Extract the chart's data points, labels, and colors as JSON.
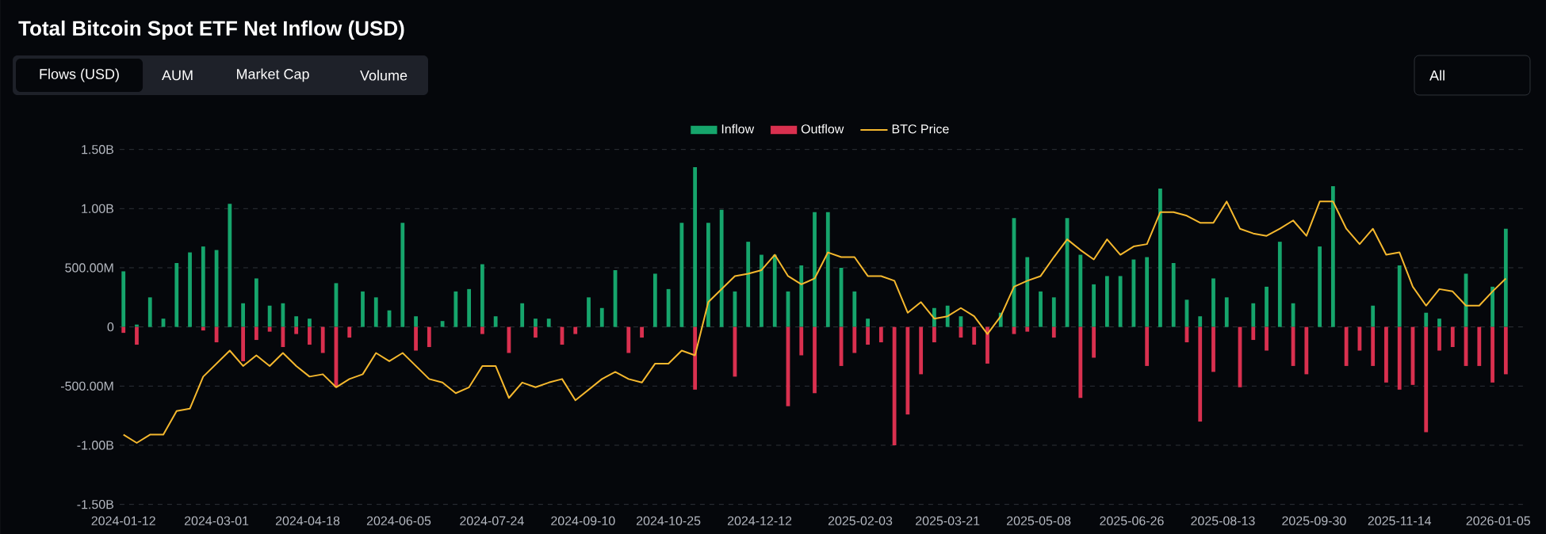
{
  "chart_data": {
    "type": "bar",
    "title": "Total Bitcoin Spot ETF Net Inflow (USD)",
    "annotations": [
      "Flows (USD)",
      "AUM",
      "Market Cap",
      "Volume",
      "All"
    ],
    "x": [
      "2024-01-12",
      "2024-01-19",
      "2024-01-26",
      "2024-02-02",
      "2024-02-09",
      "2024-02-16",
      "2024-02-23",
      "2024-03-01",
      "2024-03-08",
      "2024-03-15",
      "2024-03-22",
      "2024-03-29",
      "2024-04-05",
      "2024-04-12",
      "2024-04-19",
      "2024-04-26",
      "2024-05-03",
      "2024-05-10",
      "2024-05-17",
      "2024-05-24",
      "2024-05-31",
      "2024-06-07",
      "2024-06-14",
      "2024-06-21",
      "2024-06-28",
      "2024-07-05",
      "2024-07-12",
      "2024-07-19",
      "2024-07-26",
      "2024-08-02",
      "2024-08-09",
      "2024-08-16",
      "2024-08-23",
      "2024-08-30",
      "2024-09-06",
      "2024-09-13",
      "2024-09-20",
      "2024-09-27",
      "2024-10-04",
      "2024-10-11",
      "2024-10-18",
      "2024-10-25",
      "2024-11-01",
      "2024-11-08",
      "2024-11-15",
      "2024-11-22",
      "2024-11-29",
      "2024-12-06",
      "2024-12-13",
      "2024-12-20",
      "2024-12-27",
      "2025-01-03",
      "2025-01-10",
      "2025-01-17",
      "2025-01-24",
      "2025-01-31",
      "2025-02-07",
      "2025-02-14",
      "2025-02-21",
      "2025-02-28",
      "2025-03-07",
      "2025-03-14",
      "2025-03-21",
      "2025-03-28",
      "2025-04-04",
      "2025-04-11",
      "2025-04-18",
      "2025-04-25",
      "2025-05-02",
      "2025-05-09",
      "2025-05-16",
      "2025-05-23",
      "2025-05-30",
      "2025-06-06",
      "2025-06-13",
      "2025-06-20",
      "2025-06-27",
      "2025-07-04",
      "2025-07-11",
      "2025-07-18",
      "2025-07-25",
      "2025-08-01",
      "2025-08-08",
      "2025-08-15",
      "2025-08-22",
      "2025-08-29",
      "2025-09-05",
      "2025-09-12",
      "2025-09-19",
      "2025-09-26",
      "2025-10-03",
      "2025-10-10",
      "2025-10-17",
      "2025-10-24",
      "2025-10-31",
      "2025-11-07",
      "2025-11-14",
      "2025-11-21",
      "2025-11-28",
      "2025-12-05",
      "2025-12-12",
      "2025-12-19",
      "2025-12-26",
      "2026-01-02",
      "2026-01-09"
    ],
    "series": [
      {
        "name": "Inflow",
        "color": "#16a56c",
        "values": [
          470000000.0,
          20000000.0,
          250000000.0,
          70000000.0,
          540000000.0,
          630000000.0,
          680000000.0,
          650000000.0,
          1040000000.0,
          200000000.0,
          410000000.0,
          180000000.0,
          200000000.0,
          90000000.0,
          70000000.0,
          null,
          370000000.0,
          null,
          300000000.0,
          250000000.0,
          140000000.0,
          880000000.0,
          90000000.0,
          null,
          50000000.0,
          300000000.0,
          320000000.0,
          530000000.0,
          90000000.0,
          null,
          200000000.0,
          70000000.0,
          70000000.0,
          null,
          null,
          250000000.0,
          160000000.0,
          480000000.0,
          null,
          null,
          450000000.0,
          320000000.0,
          880000000.0,
          1350000000.0,
          880000000.0,
          990000000.0,
          300000000.0,
          720000000.0,
          610000000.0,
          610000000.0,
          300000000.0,
          520000000.0,
          970000000.0,
          970000000.0,
          500000000.0,
          300000000.0,
          70000000.0,
          null,
          null,
          null,
          null,
          160000000.0,
          180000000.0,
          90000000.0,
          null,
          null,
          120000000.0,
          920000000.0,
          590000000.0,
          300000000.0,
          250000000.0,
          920000000.0,
          610000000.0,
          360000000.0,
          430000000.0,
          430000000.0,
          570000000.0,
          590000000.0,
          1170000000.0,
          540000000.0,
          230000000.0,
          90000000.0,
          410000000.0,
          250000000.0,
          null,
          200000000.0,
          340000000.0,
          720000000.0,
          200000000.0,
          null,
          680000000.0,
          1190000000.0,
          null,
          null,
          180000000.0,
          null,
          520000000.0,
          null,
          120000000.0,
          70000000.0,
          null,
          450000000.0,
          null,
          340000000.0,
          830000000.0
        ]
      },
      {
        "name": "Outflow",
        "color": "#d9304f",
        "values": [
          -50000000.0,
          -150000000.0,
          null,
          null,
          null,
          null,
          -30000000.0,
          -130000000.0,
          null,
          -290000000.0,
          -110000000.0,
          -40000000.0,
          -170000000.0,
          -60000000.0,
          -150000000.0,
          -220000000.0,
          -510000000.0,
          -90000000.0,
          null,
          null,
          null,
          null,
          -200000000.0,
          -170000000.0,
          null,
          null,
          null,
          -60000000.0,
          null,
          -220000000.0,
          null,
          -90000000.0,
          null,
          -150000000.0,
          -60000000.0,
          null,
          null,
          null,
          -220000000.0,
          -90000000.0,
          null,
          null,
          null,
          -530000000.0,
          null,
          null,
          -420000000.0,
          null,
          null,
          null,
          -670000000.0,
          -240000000.0,
          -560000000.0,
          null,
          -330000000.0,
          -220000000.0,
          -150000000.0,
          -130000000.0,
          -1000000000.0,
          -740000000.0,
          -400000000.0,
          -130000000.0,
          null,
          -90000000.0,
          -150000000.0,
          -310000000.0,
          null,
          -60000000.0,
          -40000000.0,
          null,
          -90000000.0,
          null,
          -600000000.0,
          -260000000.0,
          null,
          null,
          null,
          -330000000.0,
          null,
          null,
          -130000000.0,
          -800000000.0,
          -380000000.0,
          null,
          -510000000.0,
          -110000000.0,
          -200000000.0,
          null,
          -330000000.0,
          -400000000.0,
          null,
          null,
          -330000000.0,
          -200000000.0,
          -330000000.0,
          -470000000.0,
          -530000000.0,
          -490000000.0,
          -890000000.0,
          -200000000.0,
          -170000000.0,
          -330000000.0,
          -330000000.0,
          -470000000.0,
          -400000000.0
        ]
      },
      {
        "name": "BTC Price",
        "type": "line",
        "color": "#f5b82e",
        "values": [
          -910000000.0,
          -980000000.0,
          -910000000.0,
          -910000000.0,
          -710000000.0,
          -690000000.0,
          -420000000.0,
          -310000000.0,
          -200000000.0,
          -330000000.0,
          -240000000.0,
          -330000000.0,
          -220000000.0,
          -330000000.0,
          -420000000.0,
          -400000000.0,
          -510000000.0,
          -440000000.0,
          -400000000.0,
          -220000000.0,
          -290000000.0,
          -220000000.0,
          -330000000.0,
          -440000000.0,
          -470000000.0,
          -560000000.0,
          -510000000.0,
          -330000000.0,
          -330000000.0,
          -600000000.0,
          -470000000.0,
          -510000000.0,
          -470000000.0,
          -440000000.0,
          -620000000.0,
          -530000000.0,
          -440000000.0,
          -380000000.0,
          -440000000.0,
          -470000000.0,
          -310000000.0,
          -310000000.0,
          -200000000.0,
          -240000000.0,
          210000000.0,
          320000000.0,
          430000000.0,
          450000000.0,
          480000000.0,
          610000000.0,
          430000000.0,
          360000000.0,
          410000000.0,
          630000000.0,
          590000000.0,
          590000000.0,
          430000000.0,
          430000000.0,
          390000000.0,
          120000000.0,
          210000000.0,
          70000000.0,
          90000000.0,
          160000000.0,
          90000000.0,
          -60000000.0,
          90000000.0,
          340000000.0,
          390000000.0,
          430000000.0,
          590000000.0,
          740000000.0,
          650000000.0,
          570000000.0,
          740000000.0,
          610000000.0,
          680000000.0,
          700000000.0,
          970000000.0,
          970000000.0,
          940000000.0,
          880000000.0,
          880000000.0,
          1060000000.0,
          830000000.0,
          790000000.0,
          770000000.0,
          830000000.0,
          900000000.0,
          770000000.0,
          1060000000.0,
          1060000000.0,
          830000000.0,
          700000000.0,
          830000000.0,
          610000000.0,
          630000000.0,
          340000000.0,
          180000000.0,
          320000000.0,
          300000000.0,
          180000000.0,
          180000000.0,
          300000000.0,
          410000000.0
        ]
      }
    ],
    "xlim": [
      "2024-01-10",
      "2026-01-18"
    ],
    "xticks": [
      "2024-01-12",
      "2024-03-01",
      "2024-04-18",
      "2024-06-05",
      "2024-07-24",
      "2024-09-10",
      "2024-10-25",
      "2024-12-12",
      "2025-02-03",
      "2025-03-21",
      "2025-05-08",
      "2025-06-26",
      "2025-08-13",
      "2025-09-30",
      "2025-11-14",
      "2026-01-05"
    ],
    "ylim": [
      -1500000000.0,
      1500000000.0
    ],
    "yticks": [
      {
        "value": -1500000000.0,
        "label": "-1.50B"
      },
      {
        "value": -1000000000.0,
        "label": "-1.00B"
      },
      {
        "value": -500000000.0,
        "label": "-500.00M"
      },
      0,
      {
        "value": 500000000.0,
        "label": "500.00M"
      },
      {
        "value": 1000000000.0,
        "label": "1.00B"
      },
      {
        "value": 1500000000.0,
        "label": "1.50B"
      }
    ],
    "grid": "y",
    "legend": "top",
    "marker": "none",
    "line_style": "solid"
  }
}
